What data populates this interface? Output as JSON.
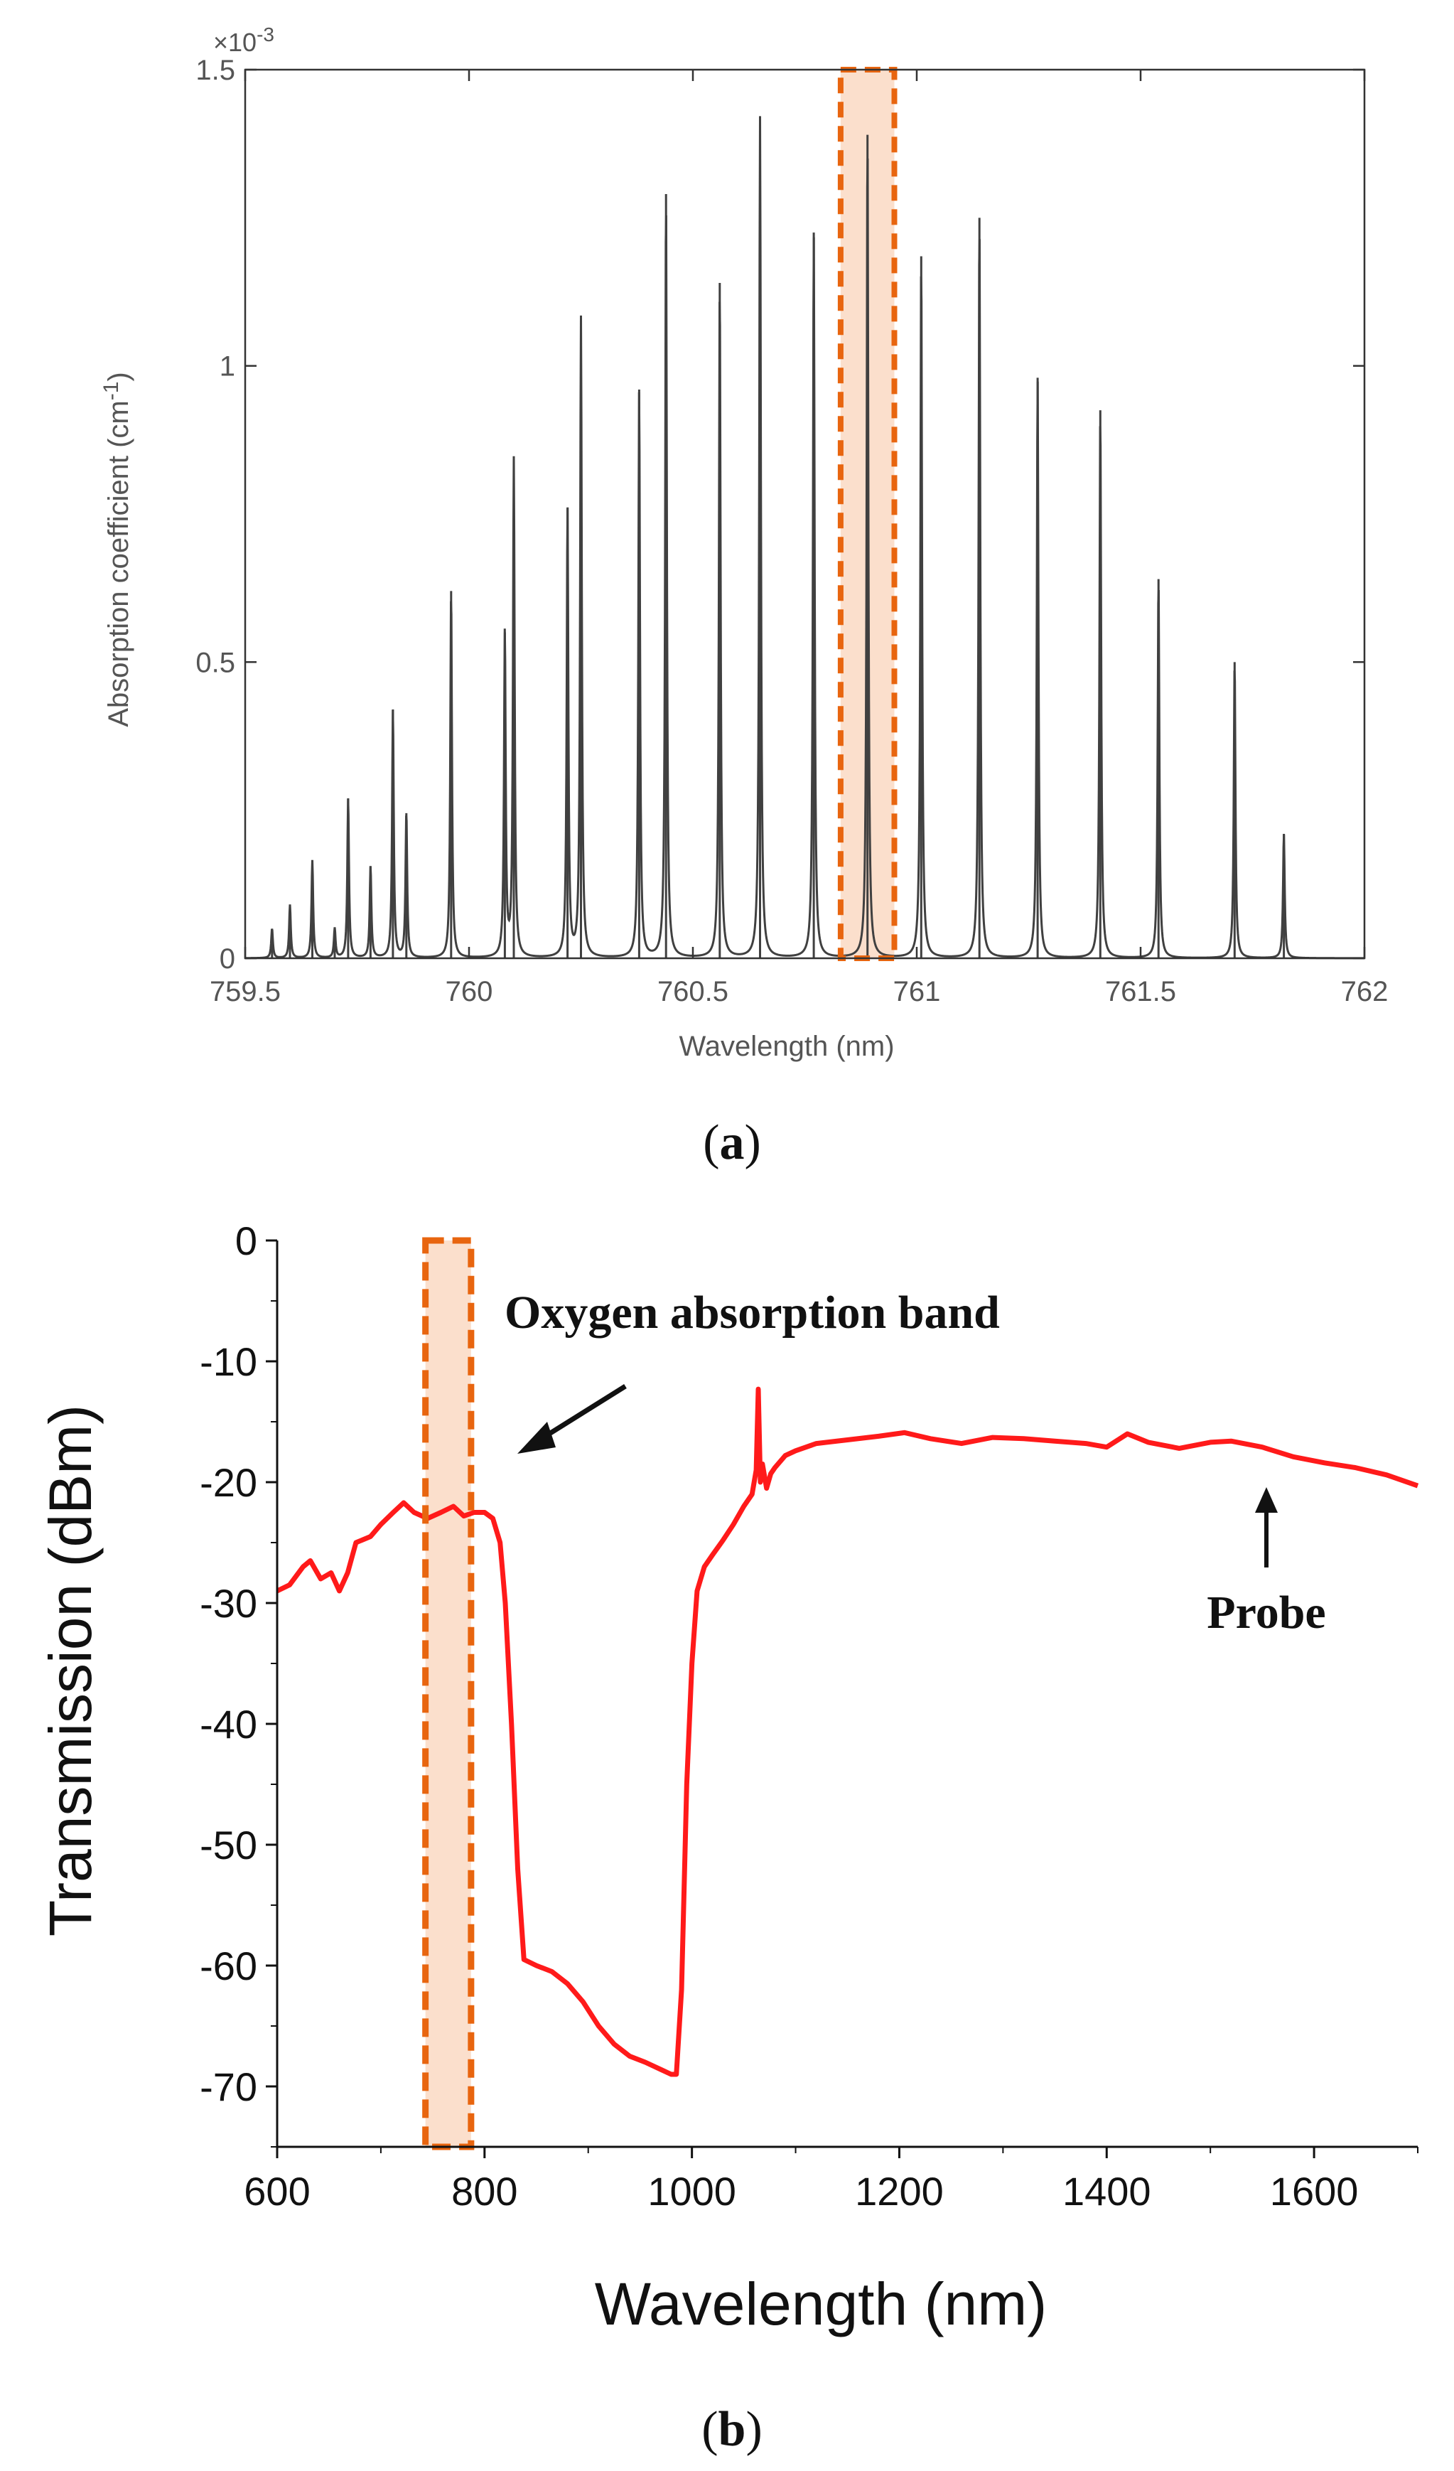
{
  "chart_data": [
    {
      "type": "line",
      "panel": "(a)",
      "caption": {
        "open": "(",
        "letter": "a",
        "close": ")"
      },
      "xlabel": "Wavelength (nm)",
      "ylabel": "Absorption coefficient (cm",
      "ylabel_sup": "-1",
      "ylabel_close": ")",
      "y_multiplier": {
        "base": "×10",
        "exp": "-3"
      },
      "xlim": [
        759.5,
        762
      ],
      "ylim": [
        0,
        1.5
      ],
      "x_ticks": [
        759.5,
        760,
        760.5,
        761,
        761.5,
        762
      ],
      "x_tick_labels": [
        "759.5",
        "760",
        "760.5",
        "761",
        "761.5",
        "762"
      ],
      "y_ticks": [
        0,
        0.5,
        1,
        1.5
      ],
      "y_tick_labels": [
        "0",
        "0.5",
        "1",
        "1.5"
      ],
      "line_color": "#404040",
      "highlight_color": "#e8650f",
      "highlight_fill": "#fbdfcc",
      "highlight_x": [
        760.83,
        760.95
      ],
      "peaks": [
        {
          "x": 759.56,
          "y": 0.05
        },
        {
          "x": 759.6,
          "y": 0.09
        },
        {
          "x": 759.65,
          "y": 0.165
        },
        {
          "x": 759.7,
          "y": 0.05
        },
        {
          "x": 759.73,
          "y": 0.27
        },
        {
          "x": 759.78,
          "y": 0.155
        },
        {
          "x": 759.83,
          "y": 0.42
        },
        {
          "x": 759.86,
          "y": 0.245
        },
        {
          "x": 759.96,
          "y": 0.62
        },
        {
          "x": 760.08,
          "y": 0.55
        },
        {
          "x": 760.1,
          "y": 0.84
        },
        {
          "x": 760.22,
          "y": 0.76
        },
        {
          "x": 760.25,
          "y": 1.08
        },
        {
          "x": 760.38,
          "y": 0.96
        },
        {
          "x": 760.44,
          "y": 1.29
        },
        {
          "x": 760.56,
          "y": 1.14
        },
        {
          "x": 760.65,
          "y": 1.42
        },
        {
          "x": 760.77,
          "y": 1.225
        },
        {
          "x": 760.89,
          "y": 1.39
        },
        {
          "x": 761.01,
          "y": 1.185
        },
        {
          "x": 761.14,
          "y": 1.25
        },
        {
          "x": 761.27,
          "y": 0.98
        },
        {
          "x": 761.41,
          "y": 0.925
        },
        {
          "x": 761.54,
          "y": 0.64
        },
        {
          "x": 761.71,
          "y": 0.5
        },
        {
          "x": 761.82,
          "y": 0.21
        }
      ]
    },
    {
      "type": "line",
      "panel": "(b)",
      "caption": {
        "open": "(",
        "letter": "b",
        "close": ")"
      },
      "xlabel": "Wavelength (nm)",
      "ylabel": "Transmission (dBm)",
      "xlim": [
        600,
        1700
      ],
      "ylim": [
        -75,
        0
      ],
      "x_ticks": [
        600,
        800,
        1000,
        1200,
        1400,
        1600
      ],
      "x_tick_labels": [
        "600",
        "800",
        "1000",
        "1200",
        "1400",
        "1600"
      ],
      "y_ticks": [
        0,
        -10,
        -20,
        -30,
        -40,
        -50,
        -60,
        -70
      ],
      "y_tick_labels": [
        "0",
        "-10",
        "-20",
        "-30",
        "-40",
        "-50",
        "-60",
        "-70"
      ],
      "line_color": "#ff1a1a",
      "highlight_color": "#e8650f",
      "highlight_fill": "#fbdfcc",
      "highlight_x": [
        743,
        787
      ],
      "annotations": {
        "band": "Oxygen absorption band",
        "probe": "Probe"
      },
      "series": [
        {
          "x": [
            600,
            612,
            625,
            632,
            642,
            652,
            660,
            668,
            676,
            690,
            700,
            712,
            722,
            732,
            745,
            758,
            770,
            780,
            790,
            800,
            808,
            815,
            820,
            826,
            832,
            838,
            850,
            865,
            880,
            895,
            910,
            925,
            940,
            955,
            970,
            980,
            985,
            990,
            995,
            1000,
            1005,
            1012,
            1020,
            1030,
            1040,
            1050,
            1058,
            1062,
            1064,
            1066,
            1068,
            1072,
            1076,
            1080,
            1090,
            1100,
            1120,
            1150,
            1180,
            1205,
            1230,
            1260,
            1290,
            1320,
            1350,
            1380,
            1400,
            1420,
            1440,
            1470,
            1500,
            1520,
            1550,
            1580,
            1610,
            1640,
            1670,
            1700
          ],
          "y": [
            -29,
            -28.5,
            -27,
            -26.5,
            -28,
            -27.5,
            -29,
            -27.5,
            -25,
            -24.5,
            -23.5,
            -22.5,
            -21.7,
            -22.5,
            -23,
            -22.5,
            -22,
            -22.8,
            -22.5,
            -22.5,
            -23,
            -25,
            -30,
            -40,
            -52,
            -59.5,
            -60,
            -60.5,
            -61.5,
            -63,
            -65,
            -66.5,
            -67.5,
            -68,
            -68.6,
            -69,
            -69,
            -62,
            -45,
            -35,
            -29,
            -27,
            -26,
            -24.8,
            -23.5,
            -22,
            -21,
            -19,
            -12.3,
            -20,
            -18.5,
            -20.5,
            -19.3,
            -18.8,
            -17.8,
            -17.4,
            -16.8,
            -16.5,
            -16.2,
            -15.9,
            -16.4,
            -16.8,
            -16.3,
            -16.4,
            -16.6,
            -16.8,
            -17.1,
            -16.0,
            -16.7,
            -17.2,
            -16.7,
            -16.6,
            -17.1,
            -17.9,
            -18.4,
            -18.8,
            -19.4,
            -20.3
          ]
        }
      ]
    }
  ]
}
